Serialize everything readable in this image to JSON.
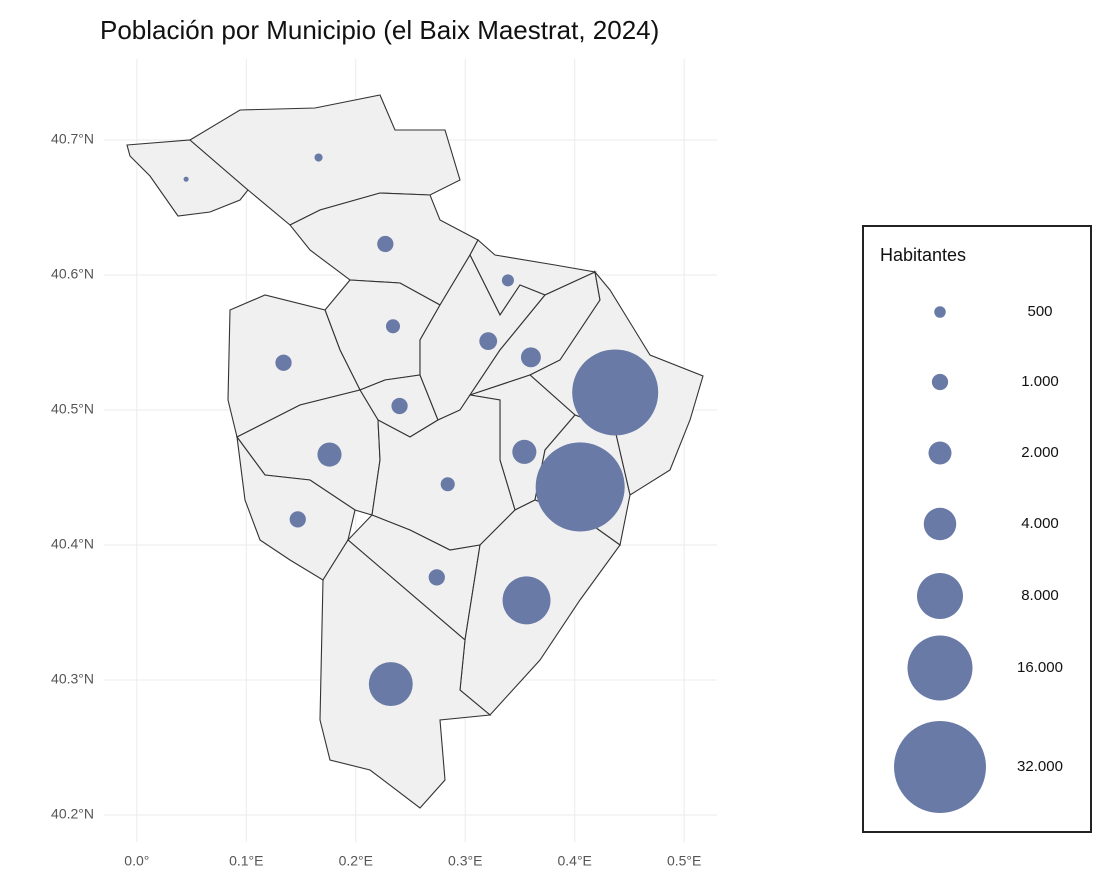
{
  "chart_data": {
    "type": "map",
    "title": "Población por Municipio (el Baix Maestrat, 2024)",
    "x": [
      0.045,
      0.166,
      0.227,
      0.234,
      0.321,
      0.339,
      0.36,
      0.134,
      0.24,
      0.176,
      0.354,
      0.284,
      0.147,
      0.437,
      0.405,
      0.274,
      0.356,
      0.232
    ],
    "y": [
      40.671,
      40.687,
      40.623,
      40.562,
      40.551,
      40.596,
      40.539,
      40.535,
      40.503,
      40.467,
      40.469,
      40.445,
      40.419,
      40.513,
      40.443,
      40.376,
      40.359,
      40.297
    ],
    "values": [
      100,
      250,
      1000,
      750,
      1200,
      550,
      1500,
      1000,
      1000,
      2200,
      2200,
      750,
      1000,
      28000,
      30000,
      1000,
      8700,
      7300
    ],
    "color": "#6a7aa6",
    "xlim": [
      -0.03,
      0.53
    ],
    "ylim": [
      40.18,
      40.76
    ],
    "xticks": [
      {
        "value": 0.0,
        "label": "0.0°"
      },
      {
        "value": 0.1,
        "label": "0.1°E"
      },
      {
        "value": 0.2,
        "label": "0.2°E"
      },
      {
        "value": 0.3,
        "label": "0.3°E"
      },
      {
        "value": 0.4,
        "label": "0.4°E"
      },
      {
        "value": 0.5,
        "label": "0.5°E"
      }
    ],
    "yticks": [
      {
        "value": 40.2,
        "label": "40.2°N"
      },
      {
        "value": 40.3,
        "label": "40.3°N"
      },
      {
        "value": 40.4,
        "label": "40.4°N"
      },
      {
        "value": 40.5,
        "label": "40.5°N"
      },
      {
        "value": 40.6,
        "label": "40.6°N"
      },
      {
        "value": 40.7,
        "label": "40.7°N"
      }
    ],
    "grid": true,
    "legend": {
      "title": "Habitantes",
      "position": "right",
      "sizes": [
        500,
        1000,
        2000,
        4000,
        8000,
        16000,
        32000
      ],
      "labels": [
        "500",
        "1.000",
        "2.000",
        "4.000",
        "8.000",
        "16.000",
        "32.000"
      ]
    }
  }
}
